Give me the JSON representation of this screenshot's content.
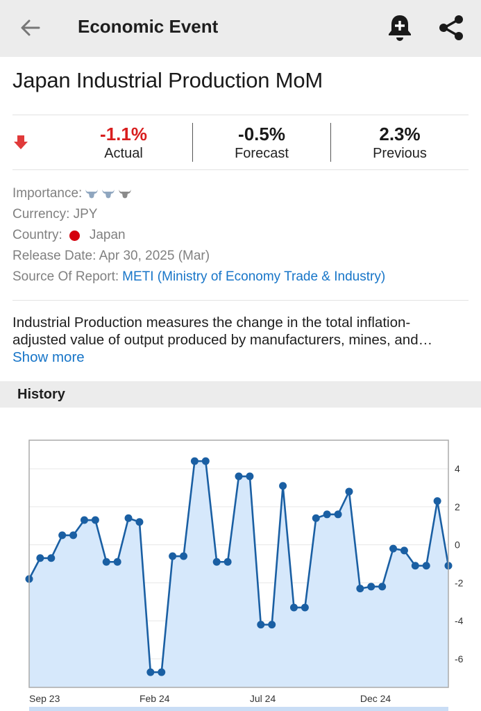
{
  "header": {
    "title": "Economic Event",
    "back_icon": "arrow-left-icon",
    "alert_icon": "bell-plus-icon",
    "share_icon": "share-icon"
  },
  "event": {
    "title": "Japan Industrial Production MoM",
    "direction_icon": "arrow-down-icon",
    "actual": {
      "value": "-1.1%",
      "label": "Actual"
    },
    "forecast": {
      "value": "-0.5%",
      "label": "Forecast"
    },
    "previous": {
      "value": "2.3%",
      "label": "Previous"
    },
    "importance_label": "Importance:",
    "importance_level": 3,
    "currency": "Currency: JPY",
    "country_label": "Country:",
    "country": "Japan",
    "release": "Release Date: Apr 30, 2025 (Mar)",
    "source_label": "Source Of Report:",
    "source": "METI (Ministry of Economy Trade & Industry)",
    "description": "Industrial Production measures the change in the total inflation-adjusted value of output produced by manufacturers, mines, and…",
    "show_more": "Show more"
  },
  "history": {
    "label": "History"
  },
  "colors": {
    "accent_red": "#d81e1e",
    "link_blue": "#1775c8",
    "line": "#1a5fa3",
    "fill": "#d6e8fb"
  },
  "chart_data": {
    "type": "area",
    "ylim": [
      -7.5,
      5.5
    ],
    "yticks": [
      "4",
      "2",
      "0",
      "-2",
      "-4",
      "-6"
    ],
    "ytick_values": [
      4,
      2,
      0,
      -2,
      -4,
      -6
    ],
    "xtick_labels": [
      "Sep 23",
      "Feb 24",
      "Jul 24",
      "Dec 24"
    ],
    "xtick_index": [
      0,
      10,
      20,
      30
    ],
    "values": [
      -1.8,
      -0.7,
      -0.7,
      0.5,
      0.5,
      1.3,
      1.3,
      -0.9,
      -0.9,
      1.4,
      1.2,
      -6.7,
      -6.7,
      -0.6,
      -0.6,
      4.4,
      4.4,
      -0.9,
      -0.9,
      3.6,
      3.6,
      -4.2,
      -4.2,
      3.1,
      -3.3,
      -3.3,
      1.4,
      1.6,
      1.6,
      2.8,
      -2.3,
      -2.2,
      -2.2,
      -0.2,
      -0.3,
      -1.1,
      -1.1,
      2.3,
      -1.1
    ]
  }
}
